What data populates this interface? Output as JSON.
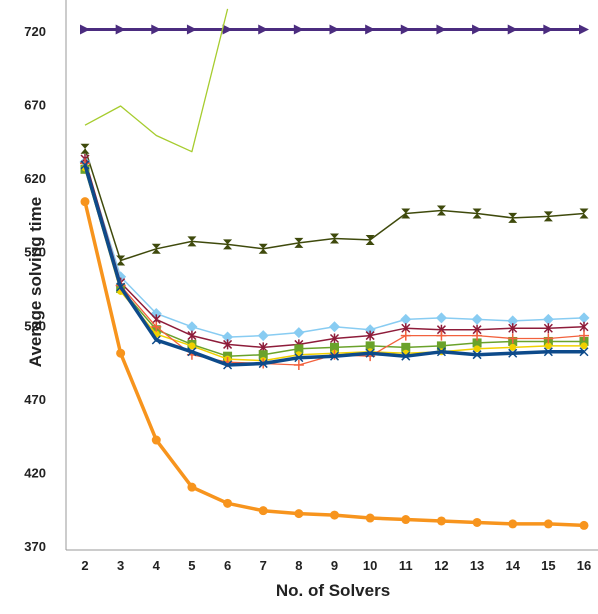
{
  "chart_data": {
    "type": "line",
    "title": "",
    "xlabel": "No. of Solvers",
    "ylabel": "Average solving time",
    "xlim": [
      2,
      16
    ],
    "ylim": [
      370,
      730
    ],
    "x_ticks": [
      2,
      3,
      4,
      5,
      6,
      7,
      8,
      9,
      10,
      11,
      12,
      13,
      14,
      15,
      16
    ],
    "y_ticks": [
      370,
      420,
      470,
      520,
      570,
      620,
      670,
      720
    ],
    "grid": false,
    "legend": "none",
    "series": [
      {
        "color": "#4b2c7f",
        "marker": "triangle-right",
        "width": 3,
        "x": [
          2,
          3,
          4,
          5,
          6,
          7,
          8,
          9,
          10,
          11,
          12,
          13,
          14,
          15,
          16
        ],
        "y": [
          721,
          721,
          721,
          721,
          721,
          721,
          721,
          721,
          721,
          721,
          721,
          721,
          721,
          721,
          721
        ]
      },
      {
        "color": "#a6cc2e",
        "marker": "none",
        "width": 1.3,
        "x": [
          2,
          3,
          4,
          5,
          6
        ],
        "y": [
          656,
          669,
          649,
          638,
          735
        ]
      },
      {
        "color": "#3f4a0c",
        "marker": "hourglass",
        "width": 1.5,
        "x": [
          2,
          3,
          4,
          5,
          6,
          7,
          8,
          9,
          10,
          11,
          12,
          13,
          14,
          15,
          16
        ],
        "y": [
          640,
          564,
          572,
          577,
          575,
          572,
          576,
          579,
          578,
          596,
          598,
          596,
          593,
          594,
          596
        ]
      },
      {
        "color": "#88ccf2",
        "marker": "diamond",
        "width": 1.5,
        "x": [
          2,
          3,
          4,
          5,
          6,
          7,
          8,
          9,
          10,
          11,
          12,
          13,
          14,
          15,
          16
        ],
        "y": [
          631,
          553,
          528,
          519,
          512,
          513,
          515,
          519,
          517,
          524,
          525,
          524,
          523,
          524,
          525
        ]
      },
      {
        "color": "#8e1c3a",
        "marker": "star",
        "width": 1.5,
        "x": [
          2,
          3,
          4,
          5,
          6,
          7,
          8,
          9,
          10,
          11,
          12,
          13,
          14,
          15,
          16
        ],
        "y": [
          633,
          549,
          524,
          513,
          507,
          505,
          507,
          511,
          513,
          518,
          517,
          517,
          518,
          518,
          519
        ]
      },
      {
        "color": "#6aa22b",
        "marker": "square",
        "width": 1.5,
        "x": [
          2,
          3,
          4,
          5,
          6,
          7,
          8,
          9,
          10,
          11,
          12,
          13,
          14,
          15,
          16
        ],
        "y": [
          626,
          545,
          517,
          507,
          499,
          500,
          504,
          505,
          506,
          505,
          506,
          508,
          509,
          509,
          509
        ]
      },
      {
        "color": "#f0d000",
        "marker": "circle-small",
        "width": 1.5,
        "x": [
          2,
          3,
          4,
          5,
          6,
          7,
          8,
          9,
          10,
          11,
          12,
          13,
          14,
          15,
          16
        ],
        "y": [
          627,
          543,
          514,
          506,
          497,
          496,
          500,
          501,
          502,
          501,
          502,
          504,
          505,
          506,
          506
        ]
      },
      {
        "color": "#f2613d",
        "marker": "plus",
        "width": 1.3,
        "x": [
          2,
          3,
          4,
          5,
          6,
          7,
          8,
          9,
          10,
          11,
          12,
          13,
          14,
          15,
          16
        ],
        "y": [
          630,
          547,
          519,
          500,
          495,
          494,
          493,
          500,
          499,
          513,
          513,
          513,
          511,
          511,
          513
        ]
      },
      {
        "color": "#0d4a8a",
        "marker": "cross",
        "width": 3.5,
        "x": [
          2,
          3,
          4,
          5,
          6,
          7,
          8,
          9,
          10,
          11,
          12,
          13,
          14,
          15,
          16
        ],
        "y": [
          629,
          546,
          510,
          502,
          493,
          494,
          498,
          499,
          501,
          499,
          502,
          500,
          501,
          502,
          502
        ]
      },
      {
        "color": "#f7941d",
        "marker": "circle",
        "width": 3.5,
        "x": [
          2,
          3,
          4,
          5,
          6,
          7,
          8,
          9,
          10,
          11,
          12,
          13,
          14,
          15,
          16
        ],
        "y": [
          604,
          501,
          442,
          410,
          399,
          394,
          392,
          391,
          389,
          388,
          387,
          386,
          385,
          385,
          384
        ]
      }
    ]
  }
}
